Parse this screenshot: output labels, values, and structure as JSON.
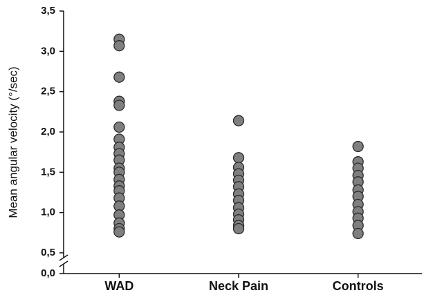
{
  "chart_data": {
    "type": "strip",
    "y_label": "Mean angular velocity (°/sec)",
    "categories": [
      "WAD",
      "Neck Pain",
      "Controls"
    ],
    "values": [
      [
        3.15,
        3.07,
        2.68,
        2.38,
        2.33,
        2.06,
        1.91,
        1.81,
        1.73,
        1.65,
        1.55,
        1.5,
        1.41,
        1.33,
        1.27,
        1.18,
        1.08,
        0.97,
        0.87,
        0.8,
        0.76
      ],
      [
        2.14,
        1.68,
        1.56,
        1.48,
        1.4,
        1.32,
        1.23,
        1.15,
        1.06,
        0.98,
        0.91,
        0.84,
        0.8
      ],
      [
        1.82,
        1.63,
        1.55,
        1.46,
        1.38,
        1.28,
        1.2,
        1.1,
        1.01,
        0.93,
        0.84,
        0.74
      ]
    ],
    "color": "#7f7f7f",
    "ylim": [
      0,
      3.5
    ],
    "axis_break": [
      0,
      0.5
    ],
    "yticks": [
      {
        "value": 0,
        "label": "0,0"
      },
      {
        "value": 0.5,
        "label": "0,5"
      },
      {
        "value": 1,
        "label": "1,0"
      },
      {
        "value": 1.5,
        "label": "1,5"
      },
      {
        "value": 2,
        "label": "2,0"
      },
      {
        "value": 2.5,
        "label": "2,5"
      },
      {
        "value": 3,
        "label": "3,0"
      },
      {
        "value": 3.5,
        "label": "3,5"
      }
    ]
  }
}
